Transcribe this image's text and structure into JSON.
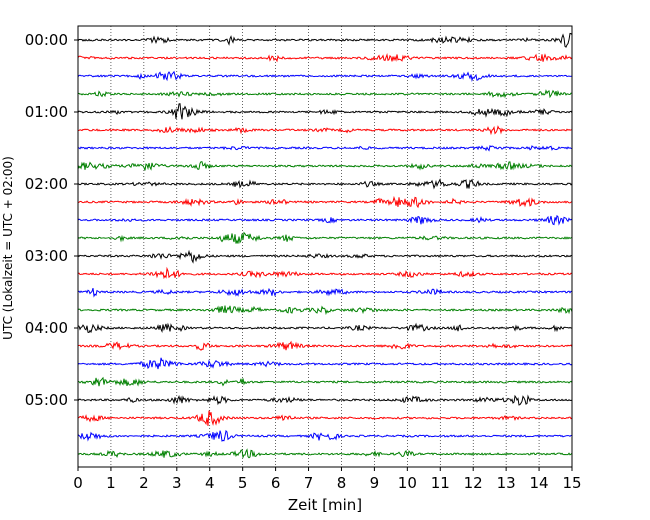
{
  "chart_data": {
    "type": "line",
    "title": "",
    "xlabel": "Zeit  [min]",
    "ylabel": "UTC (Lokalzeit = UTC + 02:00)",
    "xlim": [
      0,
      15
    ],
    "x_ticks": [
      "0",
      "1",
      "2",
      "3",
      "4",
      "5",
      "6",
      "7",
      "8",
      "9",
      "10",
      "11",
      "12",
      "13",
      "14",
      "15"
    ],
    "y_tick_labels": [
      "00:00",
      "01:00",
      "02:00",
      "03:00",
      "04:00",
      "05:00"
    ],
    "grid": "vertical dotted",
    "trace_interval_min": 15,
    "trace_colors": [
      "#000000",
      "#ff0000",
      "#0000ff",
      "#008000"
    ],
    "trace_count": 24,
    "traces": [
      {
        "start": "00:00",
        "color": "#000000"
      },
      {
        "start": "00:15",
        "color": "#ff0000"
      },
      {
        "start": "00:30",
        "color": "#0000ff"
      },
      {
        "start": "00:45",
        "color": "#008000"
      },
      {
        "start": "01:00",
        "color": "#000000"
      },
      {
        "start": "01:15",
        "color": "#ff0000"
      },
      {
        "start": "01:30",
        "color": "#0000ff"
      },
      {
        "start": "01:45",
        "color": "#008000"
      },
      {
        "start": "02:00",
        "color": "#000000"
      },
      {
        "start": "02:15",
        "color": "#ff0000"
      },
      {
        "start": "02:30",
        "color": "#0000ff"
      },
      {
        "start": "02:45",
        "color": "#008000"
      },
      {
        "start": "03:00",
        "color": "#000000"
      },
      {
        "start": "03:15",
        "color": "#ff0000"
      },
      {
        "start": "03:30",
        "color": "#0000ff"
      },
      {
        "start": "03:45",
        "color": "#008000"
      },
      {
        "start": "04:00",
        "color": "#000000"
      },
      {
        "start": "04:15",
        "color": "#ff0000"
      },
      {
        "start": "04:30",
        "color": "#0000ff"
      },
      {
        "start": "04:45",
        "color": "#008000"
      },
      {
        "start": "05:00",
        "color": "#000000"
      },
      {
        "start": "05:15",
        "color": "#ff0000"
      },
      {
        "start": "05:30",
        "color": "#0000ff"
      },
      {
        "start": "05:45",
        "color": "#008000"
      }
    ]
  }
}
